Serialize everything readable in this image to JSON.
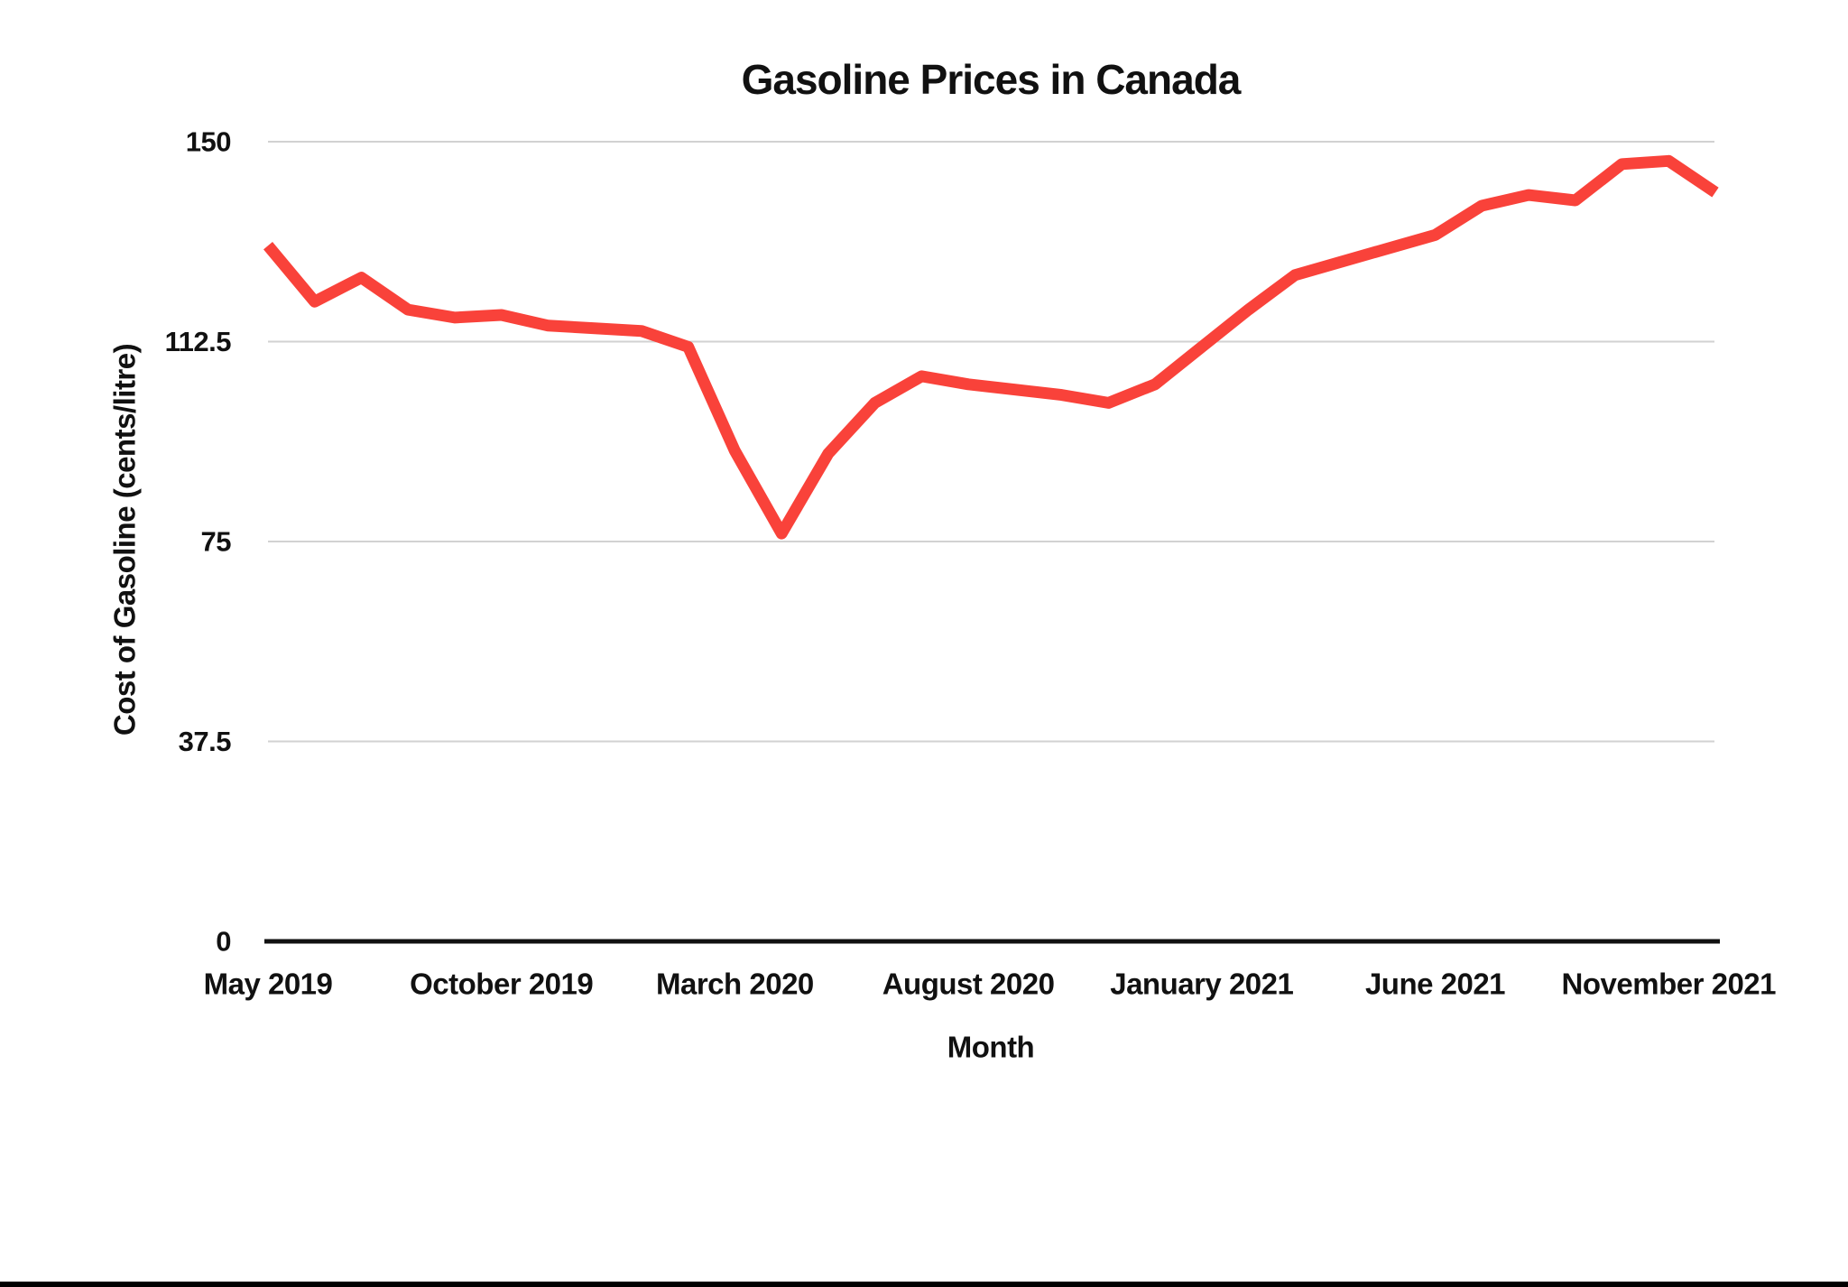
{
  "page": {
    "background": "#ffffff"
  },
  "chart_data": {
    "type": "line",
    "title": "Gasoline Prices in Canada",
    "xlabel": "Month",
    "ylabel": "Cost of Gasoline (cents/litre)",
    "x": [
      "May 2019",
      "Jun 2019",
      "Jul 2019",
      "Aug 2019",
      "Sep 2019",
      "Oct 2019",
      "Nov 2019",
      "Dec 2019",
      "Jan 2020",
      "Feb 2020",
      "Mar 2020",
      "Apr 2020",
      "May 2020",
      "Jun 2020",
      "Jul 2020",
      "Aug 2020",
      "Sep 2020",
      "Oct 2020",
      "Nov 2020",
      "Dec 2020",
      "Jan 2021",
      "Feb 2021",
      "Mar 2021",
      "Apr 2021",
      "May 2021",
      "Jun 2021",
      "Jul 2021",
      "Aug 2021",
      "Sep 2021",
      "Oct 2021",
      "Nov 2021",
      "Dec 2021"
    ],
    "series": [
      {
        "name": "Cost of Gasoline",
        "color": "#f9423a",
        "values": [
          130.5,
          120,
          124.5,
          118.5,
          117,
          117.5,
          115.5,
          115,
          114.5,
          111.5,
          92,
          76.5,
          91.5,
          101,
          106,
          104.5,
          103.5,
          102.5,
          101,
          104.5,
          111.5,
          118.5,
          125,
          127.5,
          130,
          132.5,
          138,
          140,
          139,
          145.8,
          146.4,
          140.5
        ]
      }
    ],
    "x_tick_labels": [
      "May 2019",
      "October 2019",
      "March 2020",
      "August 2020",
      "January 2021",
      "June 2021",
      "November 2021"
    ],
    "x_tick_every": 5,
    "y_ticks": [
      0,
      37.5,
      75,
      112.5,
      150
    ],
    "ylim": [
      0,
      150
    ],
    "grid": "horizontal-only",
    "legend": "none"
  },
  "colors": {
    "line": "#f9423a",
    "gridline": "#d2d2d2",
    "axis": "#111111",
    "text": "#111111",
    "bottom_bar": "#000000"
  }
}
